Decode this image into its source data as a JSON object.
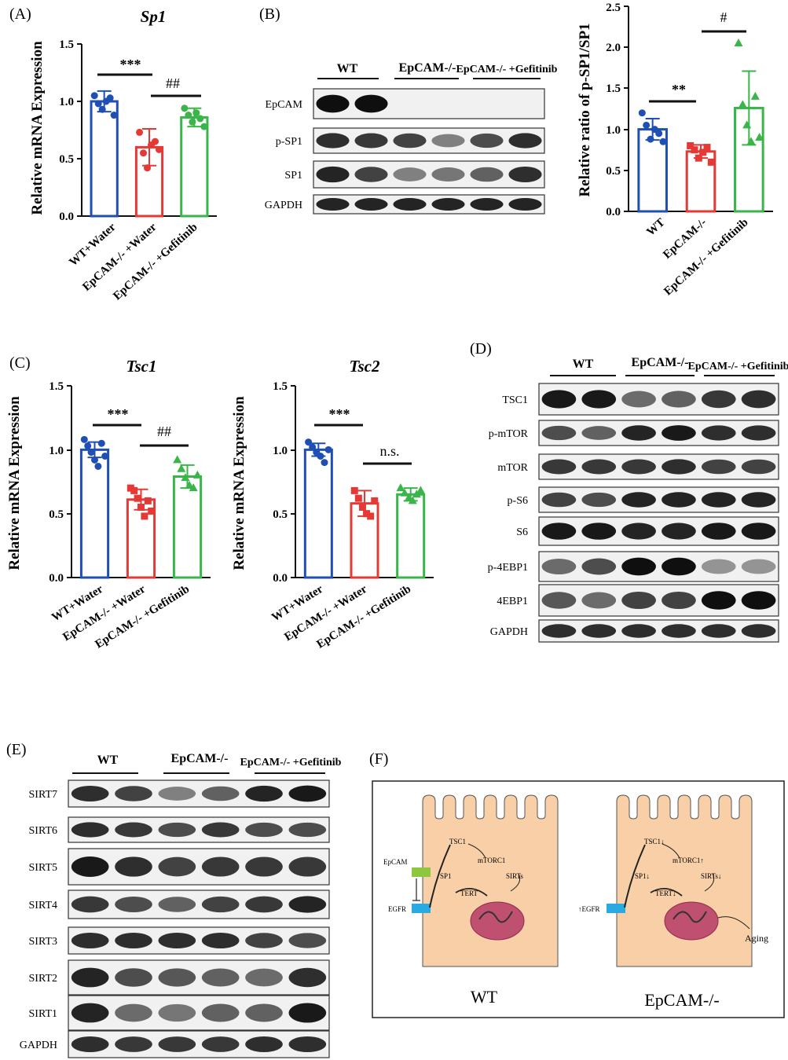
{
  "panels": {
    "A": "(A)",
    "B": "(B)",
    "C": "(C)",
    "D": "(D)",
    "E": "(E)",
    "F": "(F)"
  },
  "colors": {
    "blue": "#1f4fb4",
    "red": "#e53935",
    "green": "#39b54a",
    "cell": "#f8cfa6",
    "nucleus": "#c05070"
  },
  "blots": {
    "B": {
      "groups": [
        "WT",
        "EpCAM-/-",
        "EpCAM-/- +Gefitinib"
      ],
      "rows": [
        "EpCAM",
        "p-SP1",
        "SP1",
        "GAPDH"
      ]
    },
    "D": {
      "groups": [
        "WT",
        "EpCAM-/-",
        "EpCAM-/- +Gefitinib"
      ],
      "rows": [
        "TSC1",
        "p-mTOR",
        "mTOR",
        "p-S6",
        "S6",
        "p-4EBP1",
        "4EBP1",
        "GAPDH"
      ]
    },
    "E": {
      "groups": [
        "WT",
        "EpCAM-/-",
        "EpCAM-/- +Gefitinib"
      ],
      "rows": [
        "SIRT7",
        "SIRT6",
        "SIRT5",
        "SIRT4",
        "SIRT3",
        "SIRT2",
        "SIRT1",
        "GAPDH"
      ]
    }
  },
  "diagram": {
    "wt": {
      "title": "WT",
      "labels": [
        "EpCAM",
        "EGFR",
        "TSC1",
        "mTORC1",
        "SIRTs",
        "SP1",
        "TERT"
      ]
    },
    "ko": {
      "title": "EpCAM-/-",
      "labels": [
        "↑EGFR",
        "TSC1↓",
        "mTORC1↑",
        "SIRTs↓",
        "SP1↓",
        "TERT↓",
        "Aging"
      ]
    }
  },
  "chart_data": [
    {
      "id": "A",
      "type": "bar",
      "title": "Sp1",
      "ylabel": "Relative mRNA Expression",
      "categories": [
        "WT+Water",
        "EpCAM-/- +Water",
        "EpCAM-/- +Gefitinib"
      ],
      "values": [
        1.0,
        0.6,
        0.86
      ],
      "errors": [
        0.09,
        0.16,
        0.08
      ],
      "points": [
        [
          1.05,
          0.98,
          0.93,
          1.0,
          1.03,
          0.88
        ],
        [
          0.73,
          0.55,
          0.42,
          0.62,
          0.65,
          0.58
        ],
        [
          0.94,
          0.88,
          0.82,
          0.9,
          0.85,
          0.78
        ]
      ],
      "ylim": [
        0,
        1.5
      ],
      "yticks": [
        "0.0",
        "0.5",
        "1.0",
        "1.5"
      ],
      "annotations": [
        "***",
        "##"
      ]
    },
    {
      "id": "B",
      "type": "bar",
      "title": "",
      "ylabel": "Relative ratio of p-SP1/SP1",
      "categories": [
        "WT",
        "EpCAM-/-",
        "EpCAM-/- +Gefitinib"
      ],
      "values": [
        1.0,
        0.73,
        1.26
      ],
      "errors": [
        0.13,
        0.08,
        0.45
      ],
      "points": [
        [
          1.2,
          1.05,
          0.88,
          1.0,
          0.95,
          0.85
        ],
        [
          0.8,
          0.75,
          0.65,
          0.72,
          0.78,
          0.6
        ],
        [
          2.05,
          1.3,
          1.05,
          0.85,
          1.4,
          0.9
        ]
      ],
      "ylim": [
        0,
        2.5
      ],
      "yticks": [
        "0.0",
        "0.5",
        "1.0",
        "1.5",
        "2.0",
        "2.5"
      ],
      "annotations": [
        "**",
        "#"
      ]
    },
    {
      "id": "C1",
      "type": "bar",
      "title": "Tsc1",
      "ylabel": "Relative mRNA Expression",
      "categories": [
        "WT+Water",
        "EpCAM-/- +Water",
        "EpCAM-/- +Gefitinib"
      ],
      "values": [
        1.0,
        0.61,
        0.79
      ],
      "errors": [
        0.06,
        0.08,
        0.09
      ],
      "points": [
        [
          1.08,
          1.03,
          0.98,
          0.92,
          0.87,
          1.05,
          0.95
        ],
        [
          0.7,
          0.68,
          0.62,
          0.55,
          0.48,
          0.6,
          0.52
        ],
        [
          0.92,
          0.85,
          0.78,
          0.72,
          0.7,
          0.8
        ]
      ],
      "ylim": [
        0,
        1.5
      ],
      "yticks": [
        "0.0",
        "0.5",
        "1.0",
        "1.5"
      ],
      "annotations": [
        "***",
        "##"
      ]
    },
    {
      "id": "C2",
      "type": "bar",
      "title": "Tsc2",
      "ylabel": "Relative mRNA Expression",
      "categories": [
        "WT+Water",
        "EpCAM-/- +Water",
        "EpCAM-/- +Gefitinib"
      ],
      "values": [
        1.0,
        0.58,
        0.65
      ],
      "errors": [
        0.05,
        0.1,
        0.05
      ],
      "points": [
        [
          1.06,
          1.02,
          0.98,
          0.95,
          0.9,
          1.0
        ],
        [
          0.68,
          0.62,
          0.55,
          0.5,
          0.48,
          0.6
        ],
        [
          0.7,
          0.66,
          0.62,
          0.6,
          0.65,
          0.68
        ]
      ],
      "ylim": [
        0,
        1.5
      ],
      "yticks": [
        "0.0",
        "0.5",
        "1.0",
        "1.5"
      ],
      "annotations": [
        "***",
        "n.s."
      ]
    }
  ]
}
